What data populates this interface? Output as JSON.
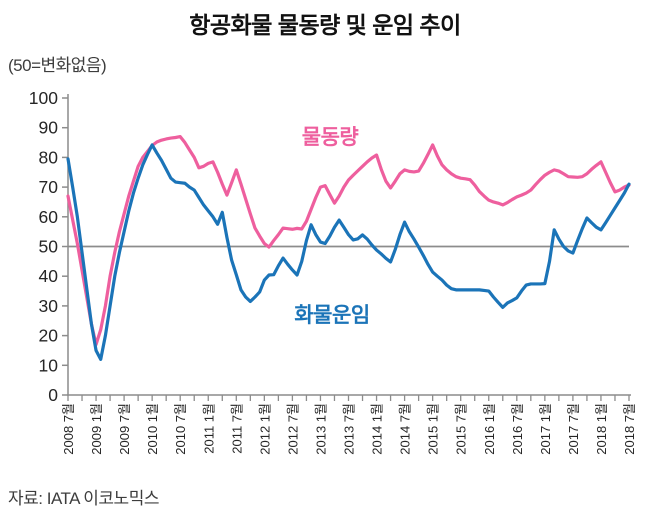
{
  "title": "항공화물 물동량 및 운임 추이",
  "subtitle": "(50=변화없음)",
  "source": "자료: IATA 이코노믹스",
  "colors": {
    "volume_pink": "#ee5f9e",
    "freight_blue": "#1b74b8",
    "axis_gray": "#8c8c8c",
    "reference_line_gray": "#8c8c8c",
    "tick_text": "#262626"
  },
  "chart_data": {
    "type": "line",
    "title": "항공화물 물동량 및 운임 추이",
    "note": "(50=변화없음)",
    "xlabel": "",
    "ylabel": "",
    "ylim": [
      0,
      100
    ],
    "ytick_step": 10,
    "reference_value": 50,
    "grid": "off",
    "legend_position": "inline-annotations",
    "frequency": "monthly",
    "x_start": "2008-07",
    "x_end": "2018-07",
    "x_tick_labels": [
      "2008 7월",
      "2009 1월",
      "2009 7월",
      "2010 1월",
      "2010 7월",
      "2011 1월",
      "2011 7월",
      "2012 1월",
      "2012 7월",
      "2013 1월",
      "2013 7월",
      "2014 1월",
      "2014 7월",
      "2015 1월",
      "2015 7월",
      "2016 1월",
      "2016 7월",
      "2017 1월",
      "2017 7월",
      "2018 1월",
      "2018 7월"
    ],
    "series": [
      {
        "name": "물동량",
        "color": "#ee5f9e",
        "values": [
          67,
          59,
          51,
          42,
          33,
          24,
          17,
          22,
          30,
          40,
          48,
          55,
          61,
          67,
          72,
          77,
          80,
          82,
          84,
          85.2,
          85.8,
          86.2,
          86.5,
          86.7,
          87,
          85,
          82.5,
          80,
          76.5,
          77,
          78,
          78.5,
          75,
          71,
          67.3,
          71.5,
          75.8,
          71,
          66,
          61,
          56.2,
          53.5,
          51,
          49.8,
          52,
          54,
          56.2,
          56,
          55.8,
          56.1,
          55.9,
          58.5,
          62.5,
          66.5,
          70,
          70.5,
          67.5,
          64.6,
          67,
          70,
          72.4,
          74,
          75.5,
          77,
          78.5,
          79.8,
          80.8,
          76,
          72,
          69.7,
          72,
          74.5,
          75.8,
          75.3,
          75.1,
          75.4,
          78,
          81,
          84.2,
          80.5,
          77.5,
          75.8,
          74.5,
          73.5,
          73,
          72.8,
          72.5,
          70.7,
          68.5,
          67,
          65.6,
          65,
          64.6,
          64,
          64.8,
          65.8,
          66.7,
          67.3,
          68,
          69,
          70.8,
          72.5,
          74,
          75,
          75.8,
          75.4,
          74.5,
          73.5,
          73.4,
          73.3,
          73.5,
          74.5,
          76,
          77.3,
          78.5,
          75,
          71.5,
          68.4,
          69,
          70,
          70.7
        ]
      },
      {
        "name": "화물운임",
        "color": "#1b74b8",
        "values": [
          79.5,
          70,
          60,
          48,
          36,
          24,
          15,
          12,
          20,
          30,
          40,
          48,
          55,
          62,
          68,
          73,
          77.5,
          81,
          84.2,
          81.5,
          79,
          76,
          73,
          71.7,
          71.5,
          71.3,
          70,
          69,
          66.5,
          64,
          62,
          60,
          57.5,
          61.5,
          53,
          45.4,
          40.5,
          35.4,
          33,
          31.5,
          33,
          34.7,
          38.7,
          40.4,
          40.5,
          43.5,
          46.1,
          44,
          42.1,
          40.4,
          45,
          52,
          57.3,
          54,
          51.5,
          51,
          53.5,
          56.5,
          58.9,
          56.5,
          54,
          52.2,
          52.6,
          53.9,
          52.5,
          50.5,
          48.8,
          47.5,
          46,
          44.8,
          49,
          54,
          58.2,
          55,
          52.5,
          49.8,
          47,
          44,
          41.4,
          40,
          38.7,
          37,
          35.8,
          35.4,
          35.4,
          35.4,
          35.4,
          35.4,
          35.4,
          35.2,
          35,
          33,
          31.2,
          29.5,
          31,
          31.8,
          32.7,
          35,
          37,
          37.4,
          37.4,
          37.4,
          37.5,
          45,
          55.6,
          52.5,
          50,
          48.5,
          47.8,
          52,
          56,
          59.6,
          58,
          56.5,
          55.6,
          58,
          60.5,
          63,
          65.5,
          68,
          71
        ]
      }
    ]
  }
}
